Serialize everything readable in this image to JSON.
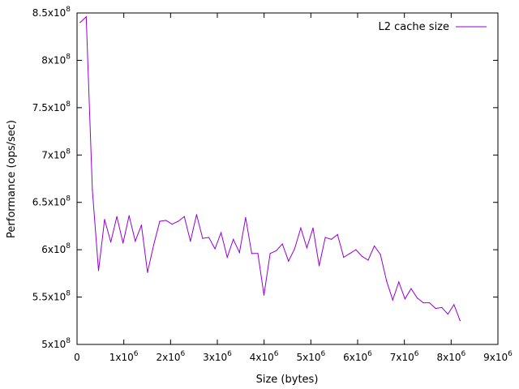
{
  "chart_data": {
    "type": "line",
    "xlabel": "Size (bytes)",
    "ylabel": "Performance (ops/sec)",
    "xlim": [
      0,
      9000000
    ],
    "ylim": [
      500000000,
      850000000
    ],
    "grid": false,
    "legend_position": "top-right",
    "x_ticks": [
      {
        "value": 0,
        "mant": "0",
        "exp": ""
      },
      {
        "value": 1000000,
        "mant": "1x10",
        "exp": "6"
      },
      {
        "value": 2000000,
        "mant": "2x10",
        "exp": "6"
      },
      {
        "value": 3000000,
        "mant": "3x10",
        "exp": "6"
      },
      {
        "value": 4000000,
        "mant": "4x10",
        "exp": "6"
      },
      {
        "value": 5000000,
        "mant": "5x10",
        "exp": "6"
      },
      {
        "value": 6000000,
        "mant": "6x10",
        "exp": "6"
      },
      {
        "value": 7000000,
        "mant": "7x10",
        "exp": "6"
      },
      {
        "value": 8000000,
        "mant": "8x10",
        "exp": "6"
      },
      {
        "value": 9000000,
        "mant": "9x10",
        "exp": "6"
      }
    ],
    "y_ticks": [
      {
        "value": 500000000,
        "mant": "5x10",
        "exp": "8"
      },
      {
        "value": 550000000,
        "mant": "5.5x10",
        "exp": "8"
      },
      {
        "value": 600000000,
        "mant": "6x10",
        "exp": "8"
      },
      {
        "value": 650000000,
        "mant": "6.5x10",
        "exp": "8"
      },
      {
        "value": 700000000,
        "mant": "7x10",
        "exp": "8"
      },
      {
        "value": 750000000,
        "mant": "7.5x10",
        "exp": "8"
      },
      {
        "value": 800000000,
        "mant": "8x10",
        "exp": "8"
      },
      {
        "value": 850000000,
        "mant": "8.5x10",
        "exp": "8"
      }
    ],
    "series": [
      {
        "name": "L2 cache size",
        "color": "#9400d3",
        "x": [
          65536,
          196608,
          327680,
          458752,
          589824,
          720896,
          851968,
          983040,
          1114112,
          1245184,
          1376256,
          1507328,
          1638400,
          1769472,
          1900544,
          2031616,
          2162688,
          2293760,
          2424832,
          2555904,
          2686976,
          2818048,
          2949120,
          3080192,
          3211264,
          3342336,
          3473408,
          3604480,
          3735552,
          3866624,
          3997696,
          4128768,
          4259840,
          4390912,
          4521984,
          4653056,
          4784128,
          4915200,
          5046272,
          5177344,
          5308416,
          5439488,
          5570560,
          5701632,
          5832704,
          5963776,
          6094848,
          6225920,
          6356992,
          6488064,
          6619136,
          6750208,
          6881280,
          7012352,
          7143424,
          7274496,
          7405568,
          7536640,
          7667712,
          7798784,
          7929856,
          8060928,
          8192000
        ],
        "y": [
          840000000,
          846000000,
          663000000,
          578000000,
          632000000,
          608000000,
          635000000,
          607000000,
          636000000,
          609000000,
          626000000,
          576000000,
          605000000,
          630000000,
          631000000,
          627000000,
          630000000,
          635000000,
          609000000,
          637000000,
          612000000,
          613000000,
          601000000,
          618000000,
          592000000,
          611000000,
          597000000,
          634000000,
          596000000,
          596000000,
          552000000,
          596000000,
          599000000,
          606000000,
          588000000,
          601000000,
          623000000,
          602000000,
          623000000,
          583000000,
          613000000,
          611000000,
          616000000,
          592000000,
          596000000,
          600000000,
          593000000,
          589000000,
          604000000,
          595000000,
          567000000,
          547000000,
          566000000,
          548000000,
          559000000,
          549000000,
          544000000,
          544000000,
          538000000,
          539000000,
          532000000,
          542000000,
          525000000
        ]
      }
    ]
  }
}
